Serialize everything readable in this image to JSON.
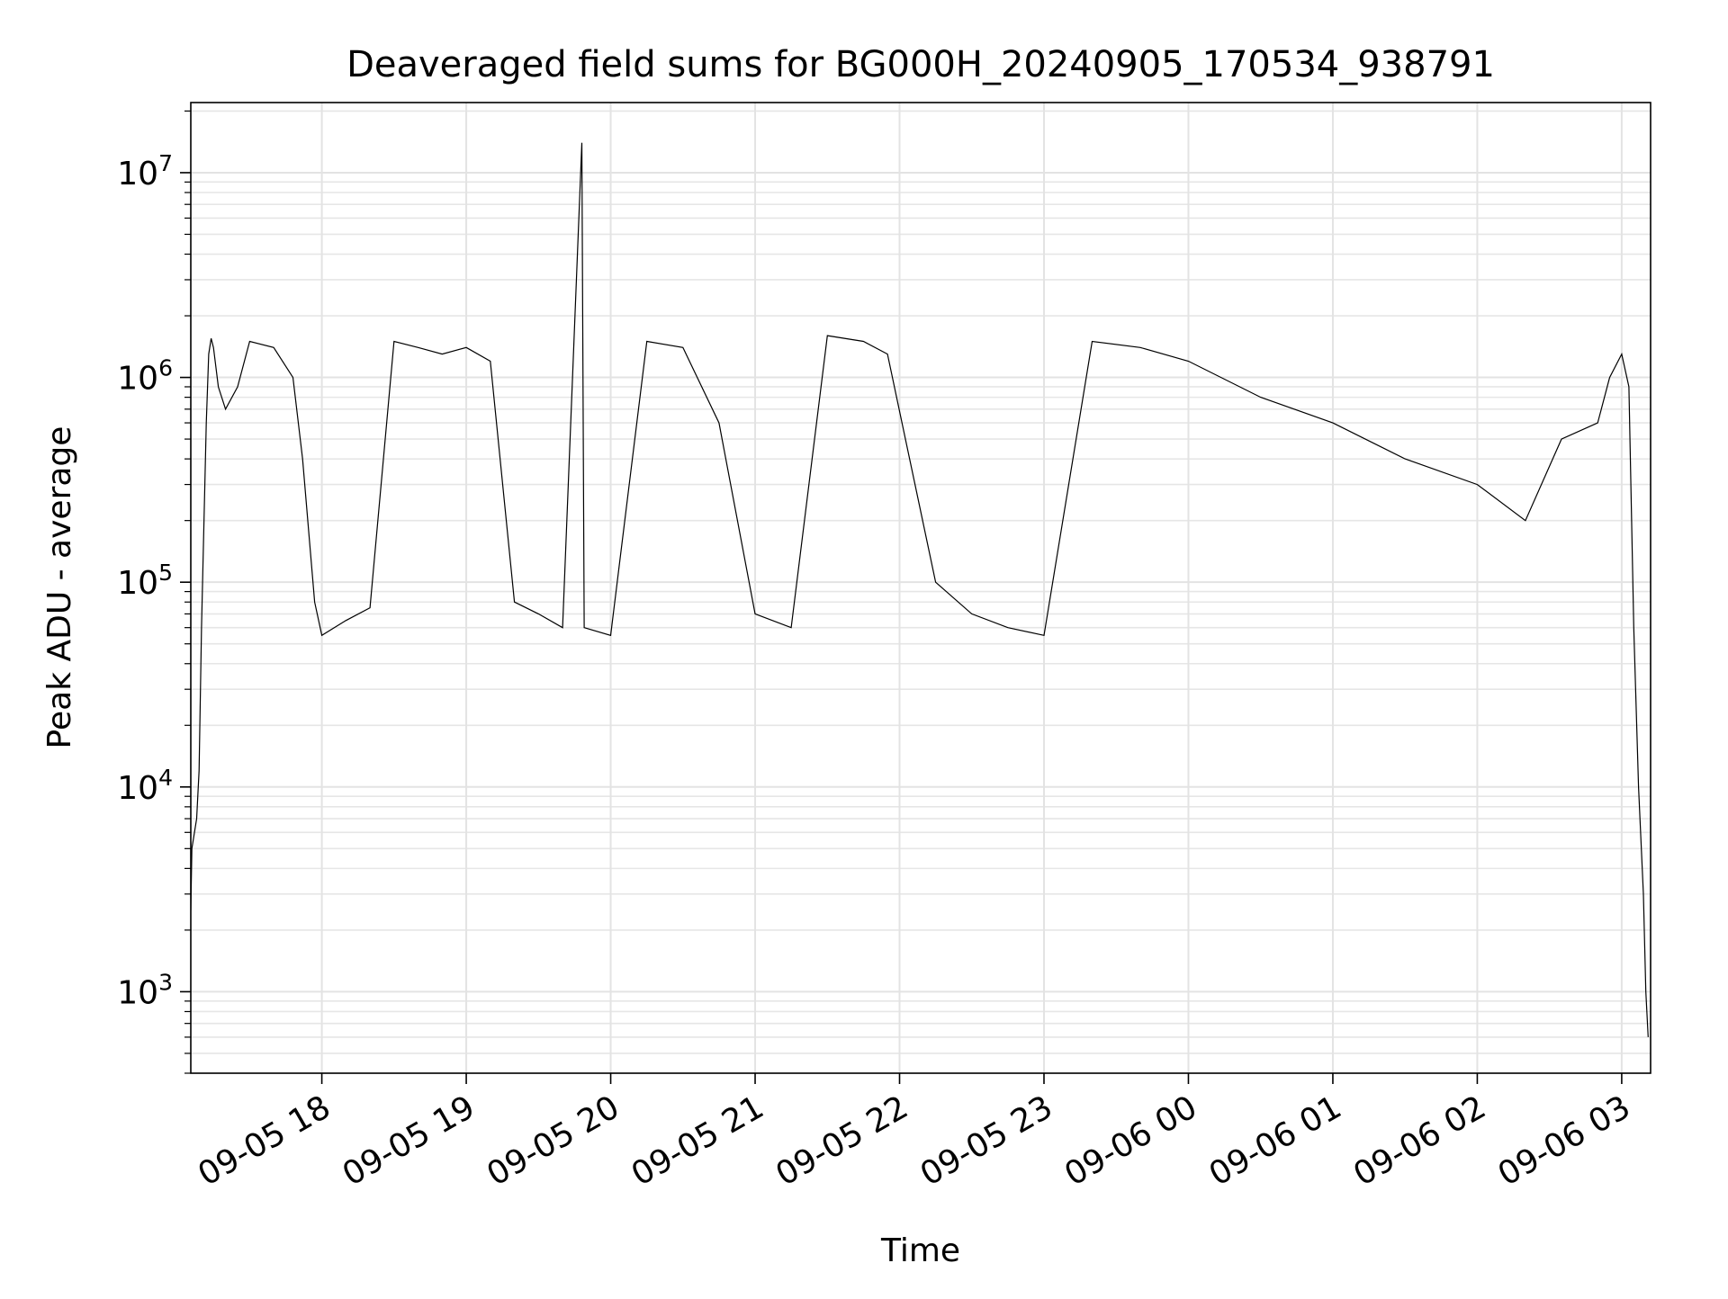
{
  "chart_data": {
    "type": "line",
    "title": "Deaveraged field sums for BG000H_20240905_170534_938791",
    "xlabel": "Time",
    "ylabel": "Peak ADU - average",
    "yscale": "log",
    "ylim": [
      400,
      22000000
    ],
    "xlim": [
      "2024-09-05 17:05:34",
      "2024-09-06 03:12:00"
    ],
    "grid": true,
    "x_ticks": [
      {
        "label": "09-05 18",
        "time": "2024-09-05 18:00"
      },
      {
        "label": "09-05 19",
        "time": "2024-09-05 19:00"
      },
      {
        "label": "09-05 20",
        "time": "2024-09-05 20:00"
      },
      {
        "label": "09-05 21",
        "time": "2024-09-05 21:00"
      },
      {
        "label": "09-05 22",
        "time": "2024-09-05 22:00"
      },
      {
        "label": "09-05 23",
        "time": "2024-09-05 23:00"
      },
      {
        "label": "09-06 00",
        "time": "2024-09-06 00:00"
      },
      {
        "label": "09-06 01",
        "time": "2024-09-06 01:00"
      },
      {
        "label": "09-06 02",
        "time": "2024-09-06 02:00"
      },
      {
        "label": "09-06 03",
        "time": "2024-09-06 03:00"
      }
    ],
    "y_ticks": [
      {
        "base": "10",
        "exp": "3",
        "value": 1000
      },
      {
        "base": "10",
        "exp": "4",
        "value": 10000
      },
      {
        "base": "10",
        "exp": "5",
        "value": 100000
      },
      {
        "base": "10",
        "exp": "6",
        "value": 1000000
      },
      {
        "base": "10",
        "exp": "7",
        "value": 10000000
      }
    ],
    "line_color": "#000000",
    "series": [
      {
        "points": [
          [
            "2024-09-05 17:05:34",
            2500
          ],
          [
            "2024-09-05 17:06",
            5000
          ],
          [
            "2024-09-05 17:08",
            7000
          ],
          [
            "2024-09-05 17:09",
            12000
          ],
          [
            "2024-09-05 17:10",
            60000
          ],
          [
            "2024-09-05 17:12",
            600000
          ],
          [
            "2024-09-05 17:13",
            1300000
          ],
          [
            "2024-09-05 17:14",
            1550000
          ],
          [
            "2024-09-05 17:15",
            1400000
          ],
          [
            "2024-09-05 17:17",
            900000
          ],
          [
            "2024-09-05 17:20",
            700000
          ],
          [
            "2024-09-05 17:25",
            900000
          ],
          [
            "2024-09-05 17:30",
            1500000
          ],
          [
            "2024-09-05 17:40",
            1400000
          ],
          [
            "2024-09-05 17:48",
            1000000
          ],
          [
            "2024-09-05 17:52",
            400000
          ],
          [
            "2024-09-05 17:57",
            80000
          ],
          [
            "2024-09-05 18:00",
            55000
          ],
          [
            "2024-09-05 18:10",
            65000
          ],
          [
            "2024-09-05 18:20",
            75000
          ],
          [
            "2024-09-05 18:30",
            1500000
          ],
          [
            "2024-09-05 18:40",
            1400000
          ],
          [
            "2024-09-05 18:50",
            1300000
          ],
          [
            "2024-09-05 19:00",
            1400000
          ],
          [
            "2024-09-05 19:10",
            1200000
          ],
          [
            "2024-09-05 19:20",
            80000
          ],
          [
            "2024-09-05 19:30",
            70000
          ],
          [
            "2024-09-05 19:40",
            60000
          ],
          [
            "2024-09-05 19:48",
            14000000
          ],
          [
            "2024-09-05 19:49",
            60000
          ],
          [
            "2024-09-05 20:00",
            55000
          ],
          [
            "2024-09-05 20:15",
            1500000
          ],
          [
            "2024-09-05 20:30",
            1400000
          ],
          [
            "2024-09-05 20:45",
            600000
          ],
          [
            "2024-09-05 21:00",
            70000
          ],
          [
            "2024-09-05 21:15",
            60000
          ],
          [
            "2024-09-05 21:30",
            1600000
          ],
          [
            "2024-09-05 21:45",
            1500000
          ],
          [
            "2024-09-05 21:55",
            1300000
          ],
          [
            "2024-09-05 22:15",
            100000
          ],
          [
            "2024-09-05 22:30",
            70000
          ],
          [
            "2024-09-05 22:45",
            60000
          ],
          [
            "2024-09-05 23:00",
            55000
          ],
          [
            "2024-09-05 23:20",
            1500000
          ],
          [
            "2024-09-05 23:40",
            1400000
          ],
          [
            "2024-09-06 00:00",
            1200000
          ],
          [
            "2024-09-06 00:30",
            800000
          ],
          [
            "2024-09-06 01:00",
            600000
          ],
          [
            "2024-09-06 01:30",
            400000
          ],
          [
            "2024-09-06 02:00",
            300000
          ],
          [
            "2024-09-06 02:20",
            200000
          ],
          [
            "2024-09-06 02:35",
            500000
          ],
          [
            "2024-09-06 02:50",
            600000
          ],
          [
            "2024-09-06 02:55",
            1000000
          ],
          [
            "2024-09-06 03:00",
            1300000
          ],
          [
            "2024-09-06 03:03",
            900000
          ],
          [
            "2024-09-06 03:05",
            60000
          ],
          [
            "2024-09-06 03:07",
            10000
          ],
          [
            "2024-09-06 03:09",
            3000
          ],
          [
            "2024-09-06 03:10",
            1000
          ],
          [
            "2024-09-06 03:11",
            600
          ]
        ]
      }
    ]
  }
}
